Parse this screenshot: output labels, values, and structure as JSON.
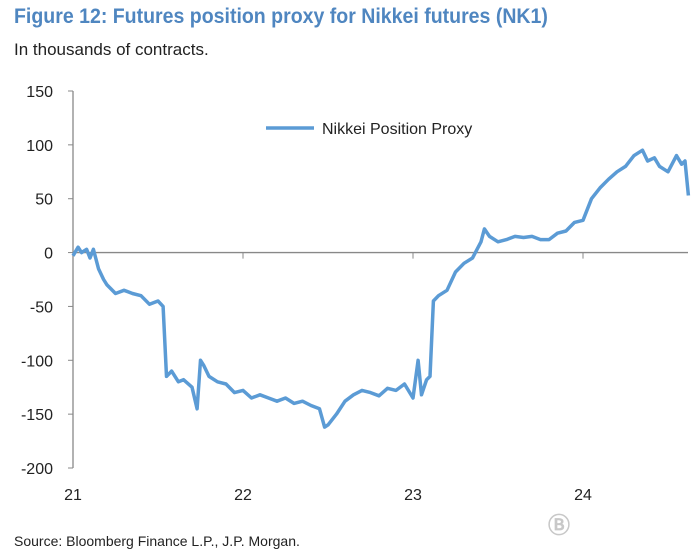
{
  "chart_data": {
    "type": "line",
    "title": "Figure 12: Futures position proxy for Nikkei futures (NK1)",
    "subtitle": "In thousands of contracts.",
    "xlabel": "",
    "ylabel": "",
    "ylim": [
      -200,
      150
    ],
    "xlim": [
      21,
      24.62
    ],
    "yticks": [
      150,
      100,
      50,
      0,
      -50,
      -100,
      -150,
      -200
    ],
    "xticks": [
      {
        "v": 21,
        "label": "21"
      },
      {
        "v": 22,
        "label": "22"
      },
      {
        "v": 23,
        "label": "23"
      },
      {
        "v": 24,
        "label": "24"
      }
    ],
    "legend": {
      "position": "top-right"
    },
    "series": [
      {
        "name": "Nikkei Position Proxy",
        "color": "#5b9bd5",
        "x": [
          21.0,
          21.03,
          21.05,
          21.08,
          21.1,
          21.12,
          21.15,
          21.18,
          21.2,
          21.25,
          21.3,
          21.35,
          21.4,
          21.45,
          21.5,
          21.53,
          21.55,
          21.58,
          21.62,
          21.65,
          21.7,
          21.73,
          21.75,
          21.77,
          21.8,
          21.85,
          21.9,
          21.95,
          22.0,
          22.05,
          22.1,
          22.15,
          22.2,
          22.25,
          22.3,
          22.35,
          22.4,
          22.45,
          22.48,
          22.5,
          22.55,
          22.6,
          22.65,
          22.7,
          22.75,
          22.8,
          22.85,
          22.9,
          22.95,
          23.0,
          23.03,
          23.05,
          23.08,
          23.1,
          23.12,
          23.15,
          23.2,
          23.25,
          23.3,
          23.35,
          23.4,
          23.42,
          23.45,
          23.5,
          23.55,
          23.6,
          23.65,
          23.7,
          23.75,
          23.8,
          23.85,
          23.9,
          23.95,
          24.0,
          24.05,
          24.1,
          24.15,
          24.2,
          24.25,
          24.3,
          24.35,
          24.38,
          24.42,
          24.45,
          24.5,
          24.55,
          24.58,
          24.6,
          24.62
        ],
        "y": [
          -3,
          5,
          0,
          3,
          -5,
          3,
          -15,
          -25,
          -30,
          -38,
          -35,
          -38,
          -40,
          -48,
          -45,
          -50,
          -115,
          -110,
          -120,
          -118,
          -125,
          -145,
          -100,
          -105,
          -115,
          -120,
          -122,
          -130,
          -128,
          -135,
          -132,
          -135,
          -138,
          -135,
          -140,
          -138,
          -142,
          -145,
          -162,
          -160,
          -150,
          -138,
          -132,
          -128,
          -130,
          -133,
          -126,
          -128,
          -122,
          -135,
          -100,
          -132,
          -118,
          -115,
          -45,
          -40,
          -35,
          -18,
          -10,
          -5,
          10,
          22,
          15,
          10,
          12,
          15,
          14,
          15,
          12,
          12,
          18,
          20,
          28,
          30,
          50,
          60,
          68,
          75,
          80,
          90,
          95,
          85,
          88,
          80,
          75,
          90,
          82,
          85,
          53
        ]
      }
    ]
  },
  "source": "Source: Bloomberg Finance L.P., J.P. Morgan.",
  "watermark": "币界网"
}
